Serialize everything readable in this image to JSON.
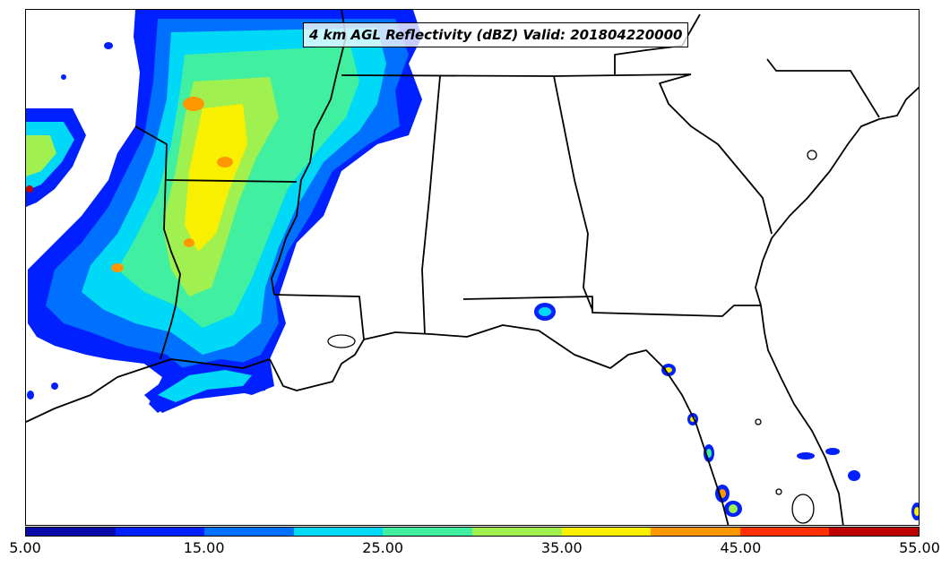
{
  "title": "4 km AGL Reflectivity (dBZ) Valid: 201804220000",
  "colorbar": {
    "colors": [
      "#0a0aa8",
      "#0020ff",
      "#0070ff",
      "#00d8f8",
      "#40f0a0",
      "#a0f050",
      "#f8f000",
      "#ff9800",
      "#ff3000",
      "#c00000"
    ],
    "tick_labels": [
      "5.00",
      "15.00",
      "25.00",
      "35.00",
      "45.00",
      "55.00"
    ],
    "min": 5,
    "max": 55
  }
}
